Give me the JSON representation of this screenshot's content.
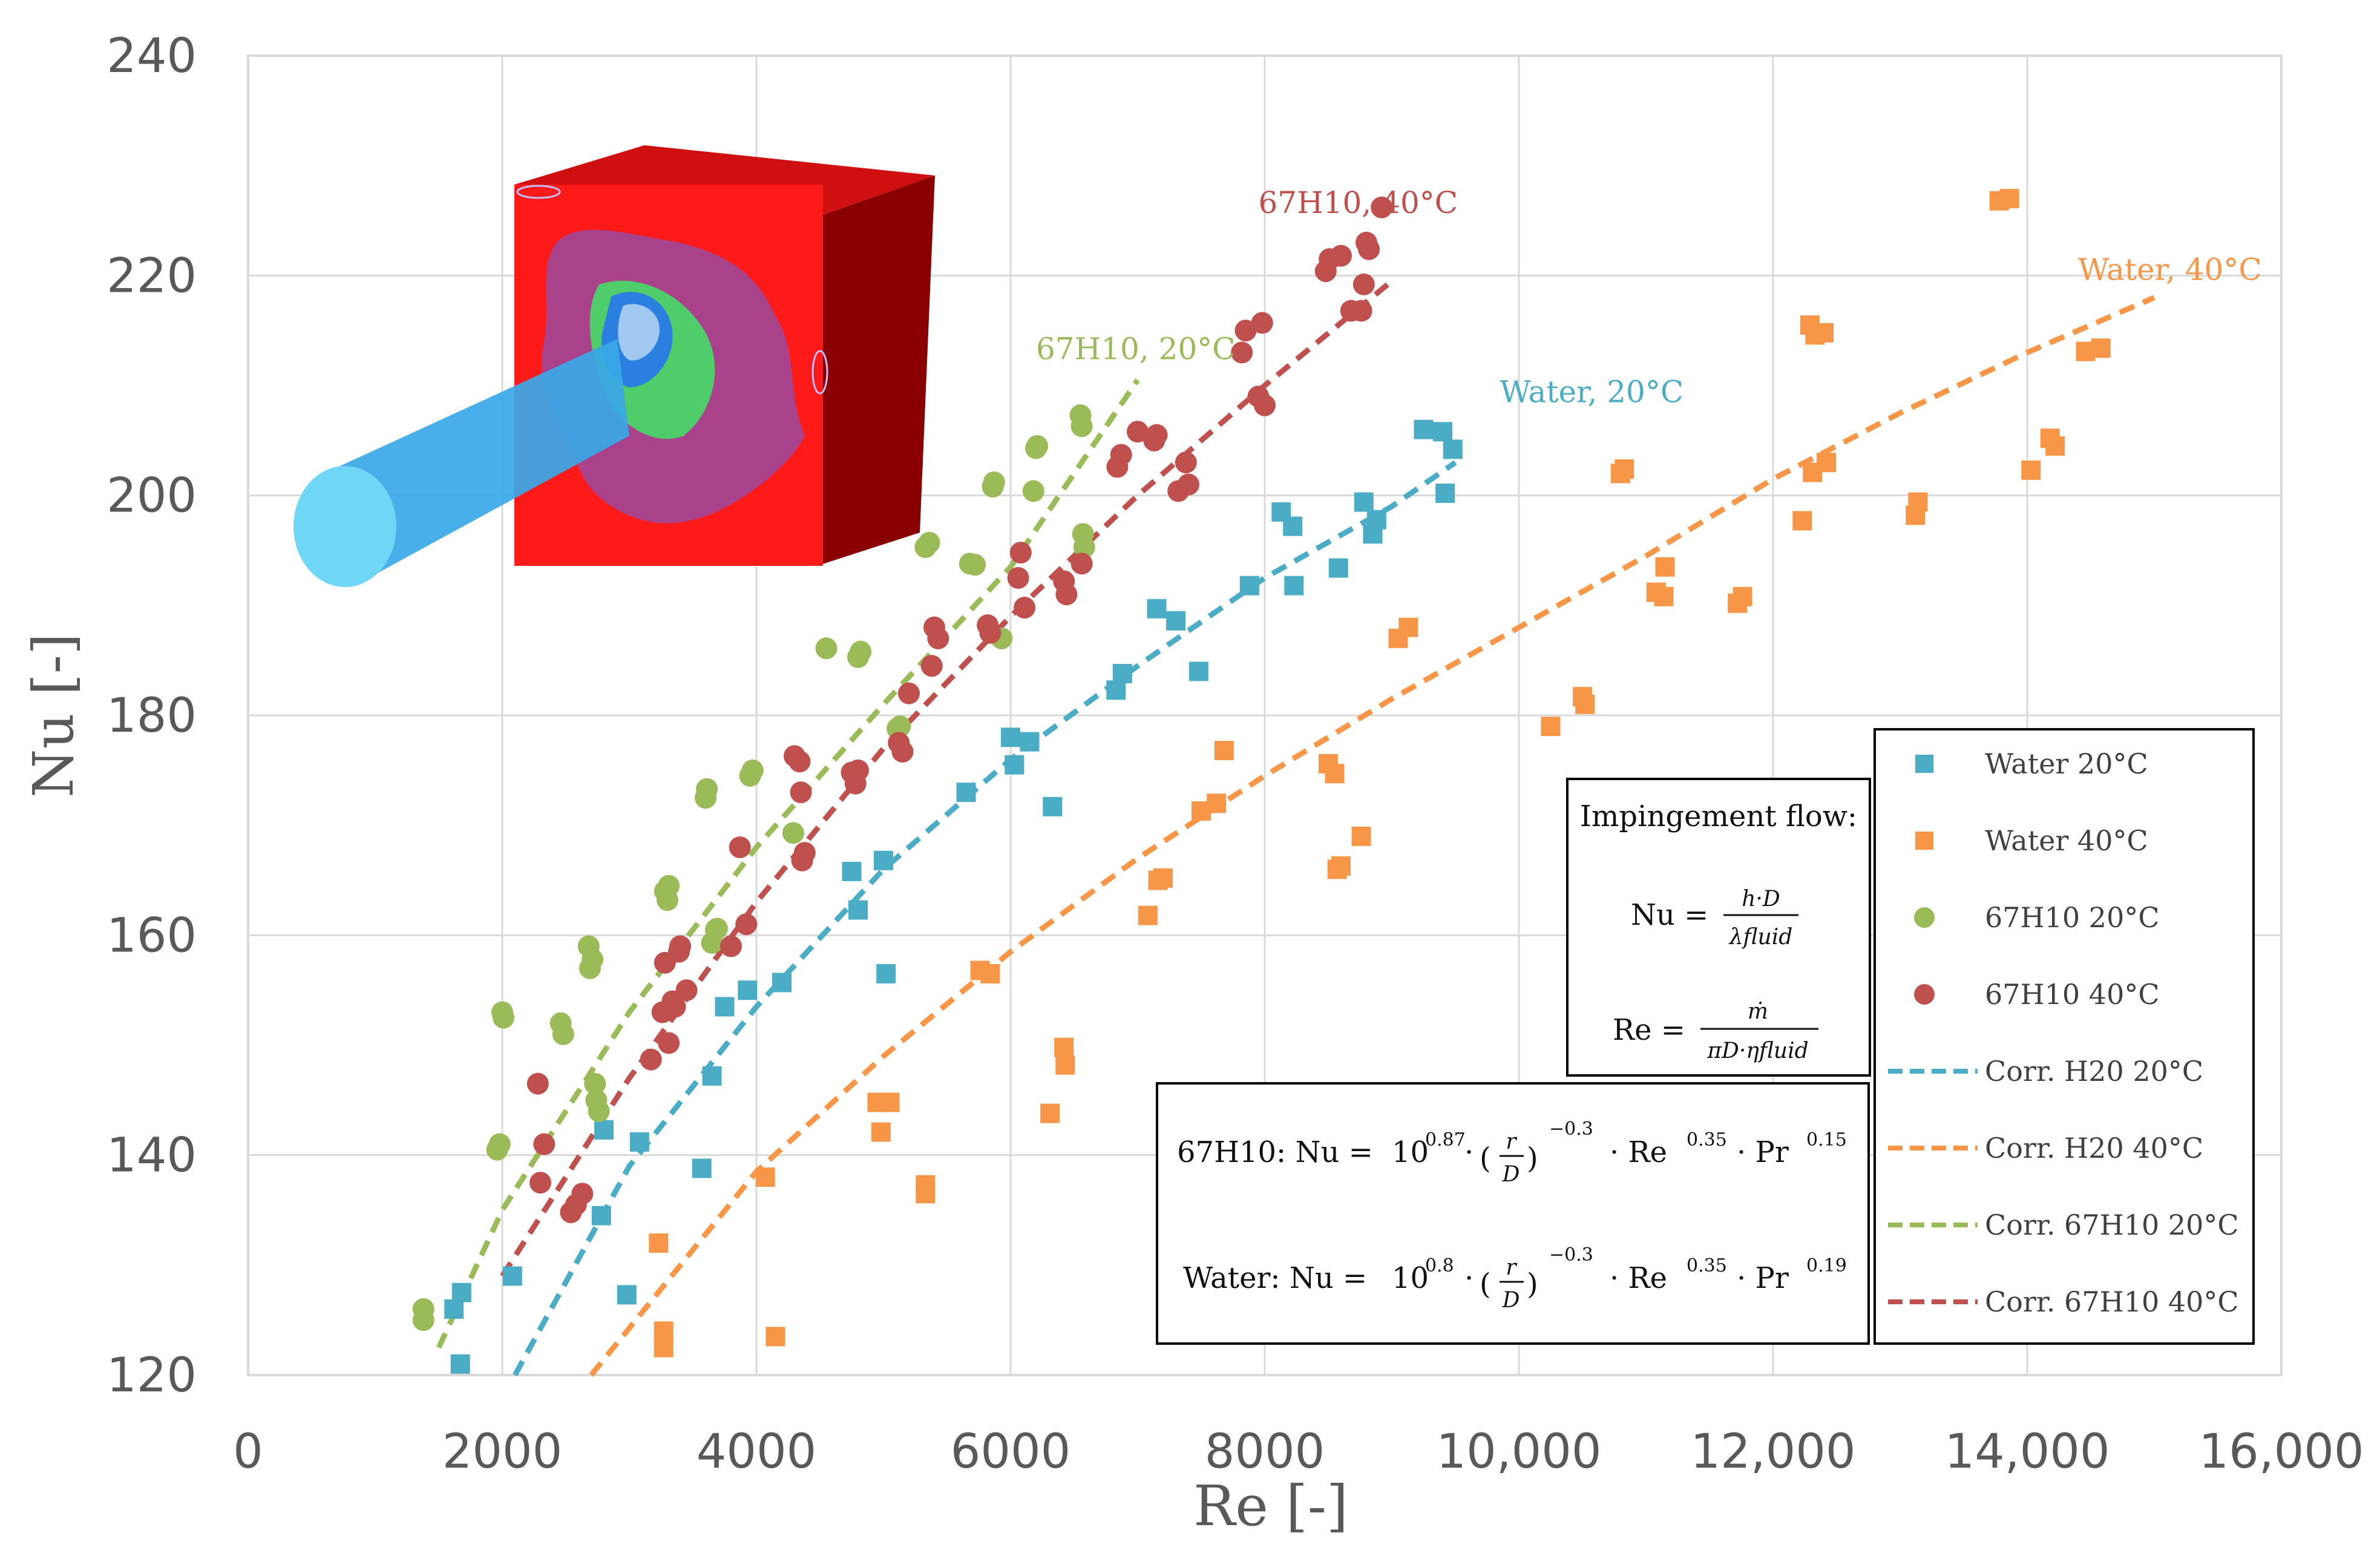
{
  "chart_data": {
    "type": "scatter",
    "xlabel": "Re [-]",
    "ylabel": "Nu [-]",
    "xlim": [
      0,
      16000
    ],
    "ylim": [
      120,
      240
    ],
    "xticks": [
      "0",
      "2000",
      "4000",
      "6000",
      "8000",
      "10,000",
      "12,000",
      "14,000",
      "16,000"
    ],
    "yticks": [
      "120",
      "140",
      "160",
      "180",
      "200",
      "220",
      "240"
    ],
    "grid": true,
    "legend_position": "bottom-right",
    "series": [
      {
        "name": "Water 20°C",
        "color": "#4bacc6",
        "marker": "square",
        "points": [
          [
            1620,
            126
          ],
          [
            1680,
            127.5
          ],
          [
            1670,
            121
          ],
          [
            2080,
            129
          ],
          [
            2780,
            134.5
          ],
          [
            2800,
            142.3
          ],
          [
            2980,
            127.3
          ],
          [
            3080,
            141.2
          ],
          [
            3570,
            138.8
          ],
          [
            3650,
            147.2
          ],
          [
            3750,
            153.5
          ],
          [
            3930,
            155
          ],
          [
            4200,
            155.7
          ],
          [
            4750,
            165.8
          ],
          [
            4800,
            162.3
          ],
          [
            5000,
            166.8
          ],
          [
            5020,
            156.5
          ],
          [
            5650,
            173
          ],
          [
            6000,
            178
          ],
          [
            6030,
            175.5
          ],
          [
            6150,
            177.6
          ],
          [
            6330,
            171.7
          ],
          [
            6830,
            182.3
          ],
          [
            6880,
            183.8
          ],
          [
            7150,
            189.7
          ],
          [
            7300,
            188.6
          ],
          [
            7480,
            184
          ],
          [
            7880,
            191.8
          ],
          [
            8130,
            198.5
          ],
          [
            8220,
            197.2
          ],
          [
            8230,
            191.8
          ],
          [
            8580,
            193.4
          ],
          [
            8780,
            199.4
          ],
          [
            8850,
            196.5
          ],
          [
            8880,
            197.8
          ],
          [
            9250,
            206
          ],
          [
            9400,
            205.8
          ],
          [
            9420,
            200.2
          ],
          [
            9480,
            204.2
          ]
        ]
      },
      {
        "name": "Water 40°C",
        "color": "#f79646",
        "marker": "square",
        "points": [
          [
            3230,
            132
          ],
          [
            3270,
            124
          ],
          [
            3270,
            122.5
          ],
          [
            4070,
            138
          ],
          [
            4150,
            123.5
          ],
          [
            4950,
            144.8
          ],
          [
            4980,
            142.1
          ],
          [
            5050,
            144.8
          ],
          [
            5330,
            137.3
          ],
          [
            5330,
            136.5
          ],
          [
            5760,
            156.8
          ],
          [
            5840,
            156.5
          ],
          [
            6310,
            143.8
          ],
          [
            6420,
            149.8
          ],
          [
            6430,
            148.2
          ],
          [
            7080,
            161.8
          ],
          [
            7160,
            165
          ],
          [
            7200,
            165.2
          ],
          [
            7500,
            171.3
          ],
          [
            7620,
            172
          ],
          [
            7680,
            176.8
          ],
          [
            8500,
            175.6
          ],
          [
            8550,
            174.7
          ],
          [
            8570,
            166
          ],
          [
            8600,
            166.3
          ],
          [
            8760,
            169
          ],
          [
            9050,
            187
          ],
          [
            9130,
            188
          ],
          [
            10250,
            179
          ],
          [
            10500,
            181.7
          ],
          [
            10520,
            181
          ],
          [
            10800,
            202
          ],
          [
            10830,
            202.4
          ],
          [
            11080,
            191.2
          ],
          [
            11140,
            190.8
          ],
          [
            11150,
            193.5
          ],
          [
            11720,
            190.2
          ],
          [
            11760,
            190.8
          ],
          [
            12230,
            197.7
          ],
          [
            12290,
            215.5
          ],
          [
            12310,
            202.1
          ],
          [
            12330,
            214.6
          ],
          [
            12400,
            214.8
          ],
          [
            12420,
            203
          ],
          [
            13120,
            198.2
          ],
          [
            13140,
            199.4
          ],
          [
            13780,
            226.8
          ],
          [
            13860,
            227
          ],
          [
            14030,
            202.3
          ],
          [
            14180,
            205.2
          ],
          [
            14220,
            204.5
          ],
          [
            14460,
            213.1
          ],
          [
            14580,
            213.4
          ]
        ]
      },
      {
        "name": "67H10 20°C",
        "color": "#9bbb59",
        "marker": "circle",
        "points": [
          [
            1380,
            125
          ],
          [
            1380,
            126
          ],
          [
            1960,
            140.5
          ],
          [
            1980,
            141
          ],
          [
            2000,
            153
          ],
          [
            2010,
            152.5
          ],
          [
            2460,
            152
          ],
          [
            2480,
            151
          ],
          [
            2680,
            159
          ],
          [
            2690,
            157
          ],
          [
            2710,
            157.8
          ],
          [
            2730,
            146.5
          ],
          [
            2740,
            145
          ],
          [
            2760,
            144
          ],
          [
            3280,
            164
          ],
          [
            3300,
            163.2
          ],
          [
            3310,
            164.5
          ],
          [
            3600,
            172.5
          ],
          [
            3610,
            173.3
          ],
          [
            3650,
            159.3
          ],
          [
            3680,
            160.5
          ],
          [
            3690,
            160.6
          ],
          [
            3950,
            174.5
          ],
          [
            3970,
            175
          ],
          [
            4290,
            169.3
          ],
          [
            4550,
            186.1
          ],
          [
            4800,
            185.3
          ],
          [
            4820,
            185.8
          ],
          [
            5110,
            178.8
          ],
          [
            5130,
            179
          ],
          [
            5330,
            195.3
          ],
          [
            5360,
            195.7
          ],
          [
            5680,
            193.8
          ],
          [
            5720,
            193.7
          ],
          [
            5860,
            200.8
          ],
          [
            5870,
            201.2
          ],
          [
            5930,
            187
          ],
          [
            6180,
            200.4
          ],
          [
            6200,
            204.3
          ],
          [
            6210,
            204.5
          ],
          [
            6550,
            207.3
          ],
          [
            6560,
            206.3
          ],
          [
            6570,
            196.5
          ],
          [
            6580,
            195.3
          ]
        ]
      },
      {
        "name": "67H10 40°C",
        "color": "#c0504d",
        "marker": "circle",
        "points": [
          [
            2280,
            146.5
          ],
          [
            2300,
            137.5
          ],
          [
            2330,
            141
          ],
          [
            2540,
            134.8
          ],
          [
            2580,
            135.5
          ],
          [
            2630,
            136.5
          ],
          [
            3170,
            148.7
          ],
          [
            3260,
            153
          ],
          [
            3280,
            157.5
          ],
          [
            3310,
            150.2
          ],
          [
            3340,
            154
          ],
          [
            3360,
            153.5
          ],
          [
            3390,
            158.5
          ],
          [
            3400,
            159
          ],
          [
            3450,
            155
          ],
          [
            3800,
            159
          ],
          [
            3870,
            168
          ],
          [
            3920,
            161
          ],
          [
            4300,
            176.3
          ],
          [
            4340,
            175.8
          ],
          [
            4350,
            173
          ],
          [
            4380,
            167.5
          ],
          [
            4360,
            166.8
          ],
          [
            4750,
            174.8
          ],
          [
            4780,
            173.8
          ],
          [
            4800,
            175
          ],
          [
            5120,
            177.5
          ],
          [
            5150,
            176.7
          ],
          [
            5200,
            182
          ],
          [
            5380,
            184.5
          ],
          [
            5400,
            188
          ],
          [
            5430,
            187
          ],
          [
            5820,
            188.2
          ],
          [
            5840,
            187.5
          ],
          [
            6060,
            192.5
          ],
          [
            6080,
            194.8
          ],
          [
            6110,
            189.8
          ],
          [
            6420,
            192.2
          ],
          [
            6440,
            191
          ],
          [
            6560,
            193.8
          ],
          [
            6840,
            202.6
          ],
          [
            6870,
            203.7
          ],
          [
            7000,
            205.8
          ],
          [
            7130,
            205
          ],
          [
            7150,
            205.5
          ],
          [
            7320,
            200.4
          ],
          [
            7380,
            203
          ],
          [
            7400,
            201
          ],
          [
            7820,
            213
          ],
          [
            7850,
            215
          ],
          [
            7950,
            209
          ],
          [
            7980,
            215.7
          ],
          [
            8000,
            208.2
          ],
          [
            8480,
            220.4
          ],
          [
            8510,
            221.5
          ],
          [
            8600,
            221.8
          ],
          [
            8680,
            216.8
          ],
          [
            8760,
            216.8
          ],
          [
            8780,
            219.2
          ],
          [
            8800,
            223
          ],
          [
            8820,
            222.4
          ],
          [
            8920,
            226.2
          ]
        ]
      },
      {
        "name": "Corr. H20 20°C",
        "color": "#4bacc6",
        "marker": "dashed-line",
        "points": [
          [
            2100,
            120
          ],
          [
            3000,
            139
          ],
          [
            4000,
            153.5
          ],
          [
            5000,
            166
          ],
          [
            6000,
            176
          ],
          [
            7000,
            184.5
          ],
          [
            8000,
            192.5
          ],
          [
            9000,
            199
          ],
          [
            9500,
            203
          ]
        ]
      },
      {
        "name": "Corr. H20 40°C",
        "color": "#f79646",
        "marker": "dashed-line",
        "points": [
          [
            2700,
            120
          ],
          [
            4000,
            138.5
          ],
          [
            5000,
            149
          ],
          [
            6000,
            158.5
          ],
          [
            7000,
            167
          ],
          [
            8000,
            174.5
          ],
          [
            9000,
            181.5
          ],
          [
            10000,
            188
          ],
          [
            11000,
            194.5
          ],
          [
            12000,
            201.5
          ],
          [
            13000,
            207.5
          ],
          [
            14000,
            213
          ],
          [
            15000,
            218
          ]
        ]
      },
      {
        "name": "Corr. 67H10 20°C",
        "color": "#9bbb59",
        "marker": "dashed-line",
        "points": [
          [
            1500,
            122.5
          ],
          [
            2000,
            135
          ],
          [
            3000,
            153
          ],
          [
            4000,
            168
          ],
          [
            5000,
            181
          ],
          [
            6000,
            193.5
          ],
          [
            7000,
            210.5
          ]
        ]
      },
      {
        "name": "Corr. 67H10 40°C",
        "color": "#c0504d",
        "marker": "dashed-line",
        "points": [
          [
            2000,
            129
          ],
          [
            3000,
            147
          ],
          [
            4000,
            163
          ],
          [
            5000,
            177
          ],
          [
            6000,
            189
          ],
          [
            7000,
            200
          ],
          [
            8000,
            210
          ],
          [
            9000,
            219.5
          ]
        ]
      }
    ],
    "annotations": [
      {
        "text": "67H10, 40°C",
        "x": 7950,
        "y": 225.7,
        "color": "#c0504d"
      },
      {
        "text": "Water, 40°C",
        "x": 14400,
        "y": 219.6,
        "color": "#f79646"
      },
      {
        "text": "67H10, 20°C",
        "x": 6200,
        "y": 212.4,
        "color": "#9bbb59"
      },
      {
        "text": "Water, 20°C",
        "x": 9850,
        "y": 208.5,
        "color": "#4bacc6"
      }
    ],
    "legend_entries": [
      "Water 20°C",
      "Water 40°C",
      "67H10 20°C",
      "67H10 40°C",
      "Corr. H20 20°C",
      "Corr. H20 40°C",
      "Corr. 67H10 20°C",
      "Corr. 67H10 40°C"
    ],
    "definitions_box": {
      "title": "Impingement flow:",
      "nu_lhs": "Nu =",
      "nu_num": "h·D",
      "nu_den": "λfluid",
      "re_lhs": "Re =",
      "re_num": "ṁ",
      "re_den": "πD·ηfluid"
    },
    "correlation_box": {
      "line1_prefix": "67H10: Nu =",
      "line1_exp10": "0.87",
      "line1_exp_rd": "−0.3",
      "line1_re_exp": "0.35",
      "line1_pr_exp": "0.15",
      "line2_prefix": "Water: Nu =",
      "line2_exp10": "0.8",
      "line2_exp_rd": "−0.3",
      "line2_re_exp": "0.35",
      "line2_pr_exp": "0.19",
      "r_sym": "r",
      "d_sym": "D",
      "ten": "10",
      "re_sym": "· Re",
      "pr_sym": "· Pr",
      "dot": "·"
    }
  }
}
